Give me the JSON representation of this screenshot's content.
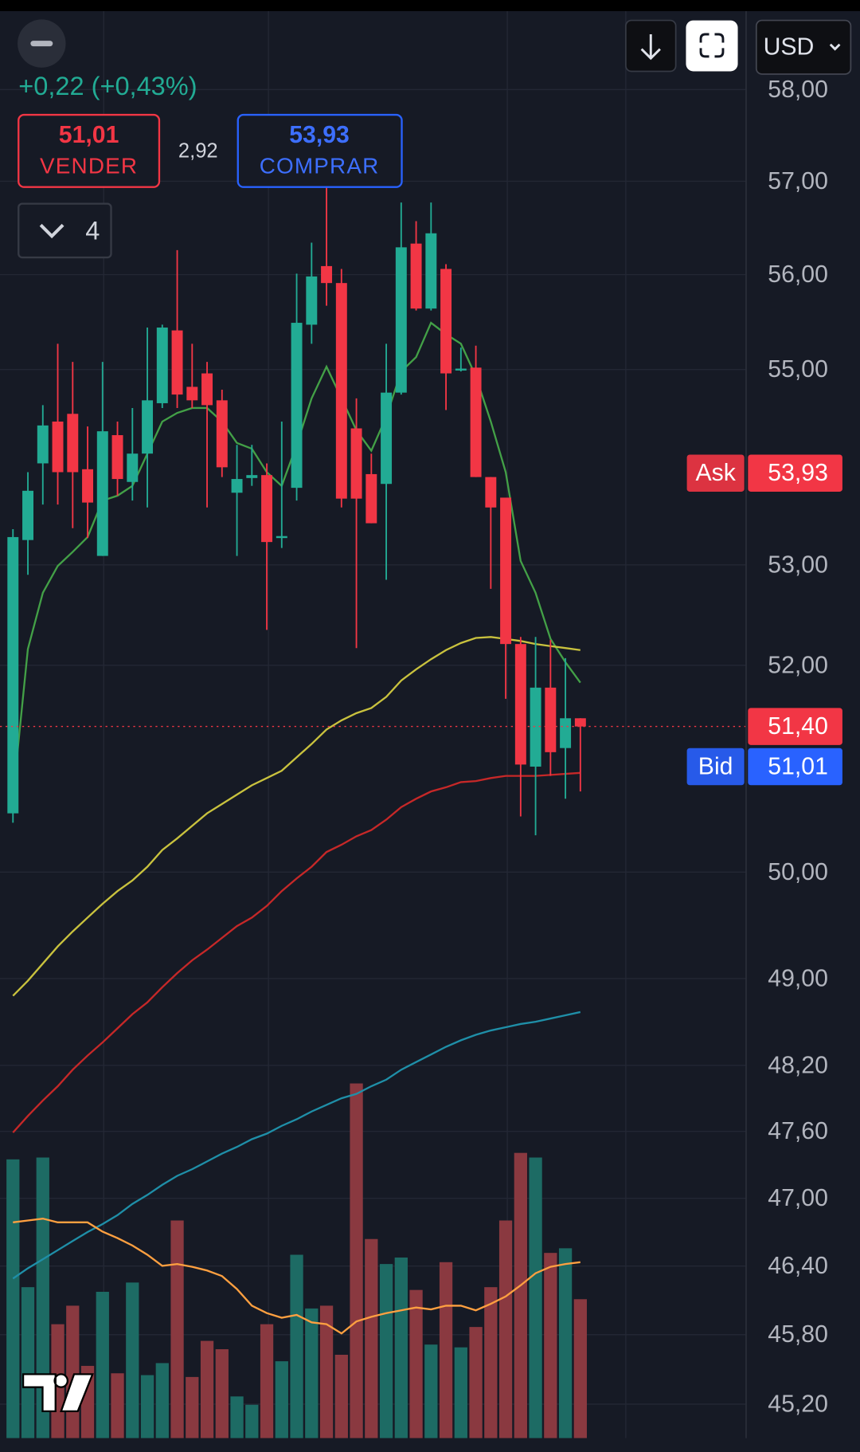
{
  "header": {
    "change": "+0,22 (+0,43%)",
    "sell": {
      "price": "51,01",
      "label": "VENDER"
    },
    "spread": "2,92",
    "buy": {
      "price": "53,93",
      "label": "COMPRAR"
    },
    "interval": "4",
    "currency": "USD"
  },
  "chart_data": {
    "type": "candlestick",
    "log_scale": true,
    "grid": true,
    "ylim": [
      44.91,
      58.89
    ],
    "yticks": [
      {
        "value": 58,
        "label": "58,00"
      },
      {
        "value": 57,
        "label": "57,00"
      },
      {
        "value": 56,
        "label": "56,00"
      },
      {
        "value": 55,
        "label": "55,00"
      },
      {
        "value": 53,
        "label": "53,00"
      },
      {
        "value": 52,
        "label": "52,00"
      },
      {
        "value": 50,
        "label": "50,00"
      },
      {
        "value": 49,
        "label": "49,00"
      },
      {
        "value": 48.2,
        "label": "48,20"
      },
      {
        "value": 47.6,
        "label": "47,60"
      },
      {
        "value": 47,
        "label": "47,00"
      },
      {
        "value": 46.4,
        "label": "46,40"
      },
      {
        "value": 45.8,
        "label": "45,80"
      },
      {
        "value": 45.2,
        "label": "45,20"
      }
    ],
    "up_color": "#22ab94",
    "down_color": "#f23645",
    "open": [
      50.56,
      53.25,
      54.03,
      54.46,
      54.54,
      53.97,
      53.09,
      54.32,
      53.84,
      54.13,
      54.65,
      55.41,
      54.82,
      54.96,
      54.68,
      53.73,
      53.88,
      53.91,
      53.27,
      53.78,
      55.47,
      56.09,
      55.91,
      54.39,
      53.92,
      53.82,
      54.76,
      56.33,
      55.64,
      56.06,
      54.99,
      55.02,
      53.89,
      53.68,
      52.21,
      51.01,
      51.78,
      51.19,
      51.48
    ],
    "high": [
      53.36,
      53.94,
      54.63,
      55.27,
      55.08,
      54.41,
      55.08,
      54.46,
      54.6,
      55.44,
      55.47,
      56.26,
      55.27,
      55.08,
      54.79,
      54.22,
      54.22,
      54.03,
      54.46,
      56.01,
      56.34,
      56.95,
      56.06,
      54.7,
      54.13,
      55.27,
      56.77,
      56.57,
      56.77,
      56.11,
      55.23,
      55.25,
      53.89,
      53.68,
      52.28,
      52.28,
      52.25,
      52.07,
      51.48
    ],
    "low": [
      50.47,
      52.9,
      53.61,
      53.61,
      53.37,
      53.27,
      53.09,
      53.7,
      53.65,
      53.58,
      54.6,
      54.6,
      54.6,
      53.58,
      53.89,
      53.09,
      53.8,
      52.35,
      53.17,
      53.65,
      55.27,
      55.67,
      53.58,
      52.17,
      53.42,
      52.85,
      54.74,
      55.62,
      55.62,
      54.58,
      54.98,
      53.89,
      52.76,
      51.67,
      50.53,
      50.35,
      50.92,
      50.7,
      50.77
    ],
    "close": [
      53.28,
      53.75,
      54.42,
      53.94,
      53.94,
      53.63,
      54.36,
      53.87,
      54.13,
      54.68,
      55.44,
      54.74,
      54.68,
      54.63,
      53.99,
      53.87,
      53.91,
      53.23,
      53.29,
      55.49,
      55.98,
      55.91,
      53.67,
      53.67,
      53.42,
      54.76,
      56.29,
      55.64,
      56.44,
      54.96,
      55.01,
      53.89,
      53.58,
      52.21,
      51.03,
      51.78,
      51.15,
      51.48,
      51.4
    ],
    "volume": [
      301,
      163,
      303,
      123,
      143,
      78,
      158,
      70,
      168,
      68,
      81,
      235,
      66,
      105,
      96,
      45,
      36,
      123,
      83,
      198,
      140,
      143,
      90,
      383,
      215,
      188,
      195,
      160,
      101,
      190,
      98,
      120,
      163,
      235,
      308,
      303,
      200,
      205,
      150
    ],
    "vlim": [
      0,
      500
    ],
    "volume_colors": {
      "up": "#1d6b64",
      "down": "#8a3940"
    },
    "series": [
      {
        "color": "#43a047",
        "values": [
          50.72,
          52.16,
          52.72,
          52.99,
          53.13,
          53.28,
          53.65,
          53.7,
          53.8,
          54.13,
          54.46,
          54.55,
          54.6,
          54.6,
          54.46,
          54.24,
          54.18,
          53.94,
          53.8,
          54.22,
          54.7,
          55.03,
          54.7,
          54.37,
          54.16,
          54.51,
          54.98,
          55.13,
          55.49,
          55.37,
          55.27,
          54.93,
          54.46,
          53.94,
          53.04,
          52.72,
          52.26,
          52.03,
          51.83
        ]
      },
      {
        "color": "#c9c23e",
        "values": [
          48.84,
          48.98,
          49.14,
          49.3,
          49.44,
          49.57,
          49.7,
          49.82,
          49.92,
          50.05,
          50.21,
          50.32,
          50.44,
          50.56,
          50.65,
          50.74,
          50.83,
          50.9,
          50.97,
          51.1,
          51.23,
          51.37,
          51.46,
          51.53,
          51.58,
          51.69,
          51.85,
          51.96,
          52.06,
          52.15,
          52.22,
          52.27,
          52.28,
          52.26,
          52.24,
          52.21,
          52.19,
          52.17,
          52.15
        ]
      },
      {
        "color": "#c62828",
        "values": [
          47.59,
          47.74,
          47.88,
          48.01,
          48.16,
          48.29,
          48.41,
          48.54,
          48.67,
          48.78,
          48.92,
          49.05,
          49.17,
          49.27,
          49.38,
          49.49,
          49.57,
          49.68,
          49.82,
          49.94,
          50.05,
          50.19,
          50.26,
          50.34,
          50.4,
          50.5,
          50.62,
          50.7,
          50.77,
          50.81,
          50.86,
          50.87,
          50.9,
          50.92,
          50.92,
          50.92,
          50.93,
          50.94,
          50.95
        ]
      },
      {
        "color": "#1f8fa8",
        "values": [
          46.29,
          46.38,
          46.46,
          46.54,
          46.62,
          46.7,
          46.77,
          46.85,
          46.95,
          47.03,
          47.12,
          47.2,
          47.26,
          47.33,
          47.4,
          47.46,
          47.53,
          47.58,
          47.65,
          47.71,
          47.78,
          47.84,
          47.9,
          47.94,
          48.01,
          48.07,
          48.16,
          48.23,
          48.3,
          48.37,
          48.43,
          48.48,
          48.52,
          48.55,
          48.58,
          48.6,
          48.63,
          48.66,
          48.69
        ]
      },
      {
        "color": "#ffa040",
        "axis": "volume",
        "values": [
          233,
          235,
          237,
          233,
          233,
          233,
          223,
          216,
          208,
          198,
          186,
          188,
          185,
          181,
          175,
          161,
          143,
          135,
          130,
          133,
          125,
          123,
          113,
          126,
          131,
          135,
          138,
          141,
          139,
          143,
          143,
          138,
          145,
          153,
          165,
          178,
          185,
          188,
          190
        ]
      }
    ],
    "markers": [
      {
        "name": "Ask",
        "value": 53.93,
        "value_label": "53,93",
        "color": "#f23645"
      },
      {
        "value": 51.4,
        "value_label": "51,40",
        "color": "#f23645",
        "line": true
      },
      {
        "name": "Bid",
        "value": 51.01,
        "value_label": "51,01",
        "color": "#2962ff"
      }
    ]
  }
}
